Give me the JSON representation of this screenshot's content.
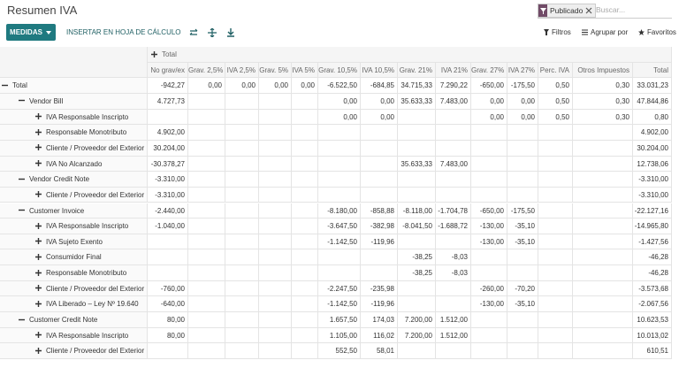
{
  "header": {
    "title": "Resumen IVA",
    "facet": "Publicado",
    "search_placeholder": "Buscar...",
    "measures_button": "MEDIDAS",
    "insert_button": "INSERTAR EN HOJA DE CÁLCULO",
    "filters": "Filtros",
    "group_by": "Agrupar por",
    "favorites": "Favoritos"
  },
  "table": {
    "column_group": "Total",
    "columns": [
      "No grav/ex",
      "Grav. 2,5%",
      "IVA 2,5%",
      "Grav. 5%",
      "IVA 5%",
      "Grav. 10,5%",
      "IVA 10,5%",
      "Grav. 21%",
      "IVA 21%",
      "Grav. 27%",
      "IVA 27%",
      "Perc. IVA",
      "Otros Impuestos",
      "Total"
    ],
    "root": {
      "label": "Total",
      "cells": [
        "-942,27",
        "0,00",
        "0,00",
        "0,00",
        "0,00",
        "-6.522,50",
        "-684,85",
        "34.715,33",
        "7.290,22",
        "-650,00",
        "-175,50",
        "0,50",
        "0,30",
        "33.031,23"
      ],
      "children": [
        {
          "label": "Vendor Bill",
          "cells": [
            "4.727,73",
            null,
            null,
            null,
            null,
            "0,00",
            "0,00",
            "35.633,33",
            "7.483,00",
            "0,00",
            "0,00",
            "0,50",
            "0,30",
            "47.844,86"
          ],
          "children": [
            {
              "label": "IVA Responsable Inscripto",
              "cells": [
                null,
                null,
                null,
                null,
                null,
                "0,00",
                "0,00",
                null,
                null,
                "0,00",
                "0,00",
                "0,50",
                "0,30",
                "0,80"
              ]
            },
            {
              "label": "Responsable Monotributo",
              "cells": [
                "4.902,00",
                null,
                null,
                null,
                null,
                null,
                null,
                null,
                null,
                null,
                null,
                null,
                null,
                "4.902,00"
              ]
            },
            {
              "label": "Cliente / Proveedor del Exterior",
              "cells": [
                "30.204,00",
                null,
                null,
                null,
                null,
                null,
                null,
                null,
                null,
                null,
                null,
                null,
                null,
                "30.204,00"
              ]
            },
            {
              "label": "IVA No Alcanzado",
              "cells": [
                "-30.378,27",
                null,
                null,
                null,
                null,
                null,
                null,
                "35.633,33",
                "7.483,00",
                null,
                null,
                null,
                null,
                "12.738,06"
              ]
            }
          ]
        },
        {
          "label": "Vendor Credit Note",
          "cells": [
            "-3.310,00",
            null,
            null,
            null,
            null,
            null,
            null,
            null,
            null,
            null,
            null,
            null,
            null,
            "-3.310,00"
          ],
          "children": [
            {
              "label": "Cliente / Proveedor del Exterior",
              "cells": [
                "-3.310,00",
                null,
                null,
                null,
                null,
                null,
                null,
                null,
                null,
                null,
                null,
                null,
                null,
                "-3.310,00"
              ]
            }
          ]
        },
        {
          "label": "Customer Invoice",
          "cells": [
            "-2.440,00",
            null,
            null,
            null,
            null,
            "-8.180,00",
            "-858,88",
            "-8.118,00",
            "-1.704,78",
            "-650,00",
            "-175,50",
            null,
            null,
            "-22.127,16"
          ],
          "children": [
            {
              "label": "IVA Responsable Inscripto",
              "cells": [
                "-1.040,00",
                null,
                null,
                null,
                null,
                "-3.647,50",
                "-382,98",
                "-8.041,50",
                "-1.688,72",
                "-130,00",
                "-35,10",
                null,
                null,
                "-14.965,80"
              ]
            },
            {
              "label": "IVA Sujeto Exento",
              "cells": [
                null,
                null,
                null,
                null,
                null,
                "-1.142,50",
                "-119,96",
                null,
                null,
                "-130,00",
                "-35,10",
                null,
                null,
                "-1.427,56"
              ]
            },
            {
              "label": "Consumidor Final",
              "cells": [
                null,
                null,
                null,
                null,
                null,
                null,
                null,
                "-38,25",
                "-8,03",
                null,
                null,
                null,
                null,
                "-46,28"
              ]
            },
            {
              "label": "Responsable Monotributo",
              "cells": [
                null,
                null,
                null,
                null,
                null,
                null,
                null,
                "-38,25",
                "-8,03",
                null,
                null,
                null,
                null,
                "-46,28"
              ]
            },
            {
              "label": "Cliente / Proveedor del Exterior",
              "cells": [
                "-760,00",
                null,
                null,
                null,
                null,
                "-2.247,50",
                "-235,98",
                null,
                null,
                "-260,00",
                "-70,20",
                null,
                null,
                "-3.573,68"
              ]
            },
            {
              "label": "IVA Liberado – Ley Nº 19.640",
              "cells": [
                "-640,00",
                null,
                null,
                null,
                null,
                "-1.142,50",
                "-119,96",
                null,
                null,
                "-130,00",
                "-35,10",
                null,
                null,
                "-2.067,56"
              ]
            }
          ]
        },
        {
          "label": "Customer Credit Note",
          "cells": [
            "80,00",
            null,
            null,
            null,
            null,
            "1.657,50",
            "174,03",
            "7.200,00",
            "1.512,00",
            null,
            null,
            null,
            null,
            "10.623,53"
          ],
          "children": [
            {
              "label": "IVA Responsable Inscripto",
              "cells": [
                "80,00",
                null,
                null,
                null,
                null,
                "1.105,00",
                "116,02",
                "7.200,00",
                "1.512,00",
                null,
                null,
                null,
                null,
                "10.013,02"
              ]
            },
            {
              "label": "Cliente / Proveedor del Exterior",
              "cells": [
                null,
                null,
                null,
                null,
                null,
                "552,50",
                "58,01",
                null,
                null,
                null,
                null,
                null,
                null,
                "610,51"
              ]
            }
          ]
        }
      ]
    }
  }
}
